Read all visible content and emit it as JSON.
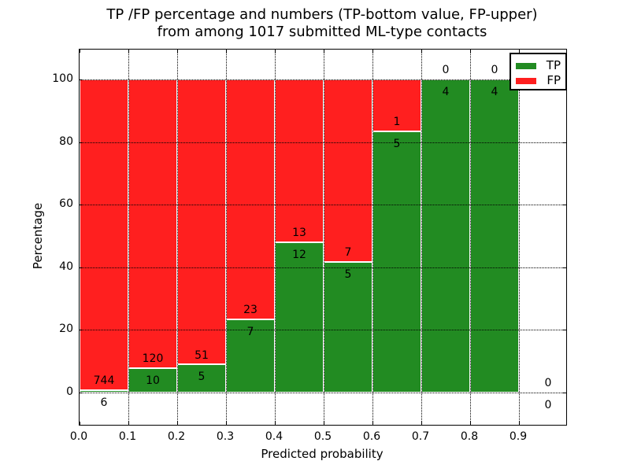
{
  "title": {
    "line1": "TP /FP percentage and numbers (TP-bottom value, FP-upper)",
    "line2": "from among 1017 submitted ML-type contacts"
  },
  "axes": {
    "xlabel": "Predicted probability",
    "ylabel": "Percentage",
    "xtick_labels": [
      "0.0",
      "0.1",
      "0.2",
      "0.3",
      "0.4",
      "0.5",
      "0.6",
      "0.7",
      "0.8",
      "0.9"
    ],
    "ytick_labels": [
      "0",
      "20",
      "40",
      "60",
      "80",
      "100"
    ]
  },
  "legend": {
    "items": [
      {
        "label": "TP",
        "color": "#228b22"
      },
      {
        "label": "FP",
        "color": "#ff1f1f"
      }
    ]
  },
  "colors": {
    "tp_green": "#228b22",
    "fp_red": "#ff1f1f",
    "grid": "#000000",
    "background": "#ffffff"
  },
  "chart_data": {
    "type": "bar",
    "stacked": true,
    "percent_normalized": true,
    "title": "TP /FP percentage and numbers (TP-bottom value, FP-upper) from among 1017 submitted ML-type contacts",
    "total_submitted_contacts": 1017,
    "xlabel": "Predicted probability",
    "ylabel": "Percentage",
    "bin_edges": [
      0.0,
      0.1,
      0.2,
      0.3,
      0.4,
      0.5,
      0.6,
      0.7,
      0.8,
      0.9,
      1.0
    ],
    "categories": [
      "0.0-0.1",
      "0.1-0.2",
      "0.2-0.3",
      "0.3-0.4",
      "0.4-0.5",
      "0.5-0.6",
      "0.6-0.7",
      "0.7-0.8",
      "0.8-0.9",
      "0.9-1.0"
    ],
    "series": [
      {
        "name": "TP",
        "color": "#228b22",
        "counts": [
          6,
          10,
          5,
          7,
          12,
          5,
          5,
          4,
          4,
          0
        ]
      },
      {
        "name": "FP",
        "color": "#ff1f1f",
        "counts": [
          744,
          120,
          51,
          23,
          13,
          7,
          1,
          0,
          0,
          0
        ]
      }
    ],
    "tp_percent_of_bin": [
      0.8,
      7.7,
      8.9,
      23.3,
      48.0,
      41.7,
      83.3,
      100.0,
      100.0,
      null
    ],
    "xticks": [
      0.0,
      0.1,
      0.2,
      0.3,
      0.4,
      0.5,
      0.6,
      0.7,
      0.8,
      0.9
    ],
    "yticks": [
      0,
      20,
      40,
      60,
      80,
      100
    ],
    "xlim": [
      0.0,
      1.0
    ],
    "ylim": [
      -10.5,
      109.5
    ],
    "grid": "dotted",
    "legend_position": "upper right"
  }
}
